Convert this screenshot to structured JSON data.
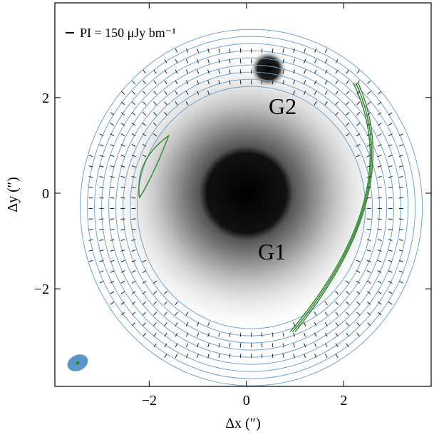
{
  "chart_data": {
    "type": "image",
    "legend_text": "PI = 150 μJy bm⁻¹",
    "annotations": [
      "G1",
      "G2"
    ],
    "xlabel": "Δx (″)",
    "ylabel": "Δy (″)",
    "xlim": [
      -3.94,
      3.8
    ],
    "ylim": [
      -4.04,
      3.98
    ],
    "xticks": [
      {
        "value": -2,
        "label": "−2"
      },
      0,
      2
    ],
    "yticks": [
      {
        "value": -2,
        "label": "−2"
      },
      0,
      2
    ]
  }
}
